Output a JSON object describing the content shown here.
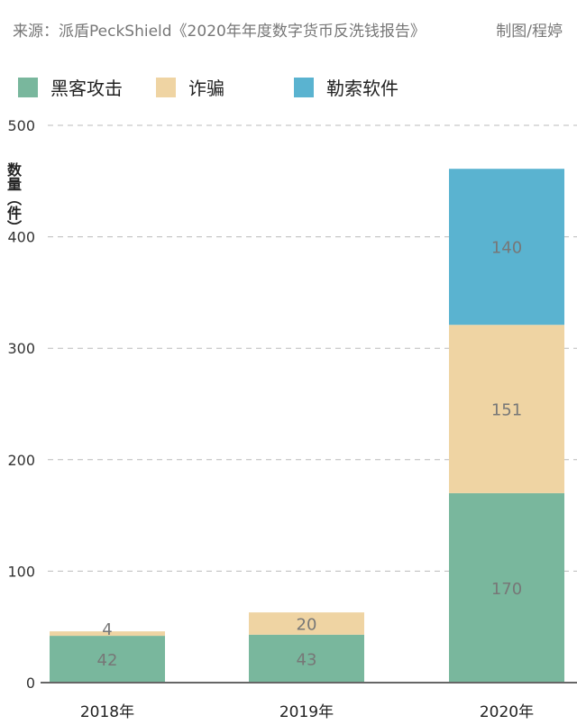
{
  "header": {
    "source": "来源：派盾PeckShield《2020年年度数字货币反洗钱报告》",
    "credit": "制图/程婷"
  },
  "chart_data": {
    "type": "bar",
    "stacked": true,
    "categories": [
      "2018年",
      "2019年",
      "2020年"
    ],
    "series": [
      {
        "name": "黑客攻击",
        "color": "#79b79d",
        "values": [
          42,
          43,
          170
        ]
      },
      {
        "name": "诈骗",
        "color": "#efd4a3",
        "values": [
          4,
          20,
          151
        ]
      },
      {
        "name": "勒索软件",
        "color": "#5ab3d0",
        "values": [
          0,
          0,
          140
        ]
      }
    ],
    "ylabel": "数量（件）",
    "ylim": [
      0,
      500
    ],
    "yticks": [
      0,
      100,
      200,
      300,
      400,
      500
    ],
    "grid": true,
    "legend": "top-left"
  }
}
